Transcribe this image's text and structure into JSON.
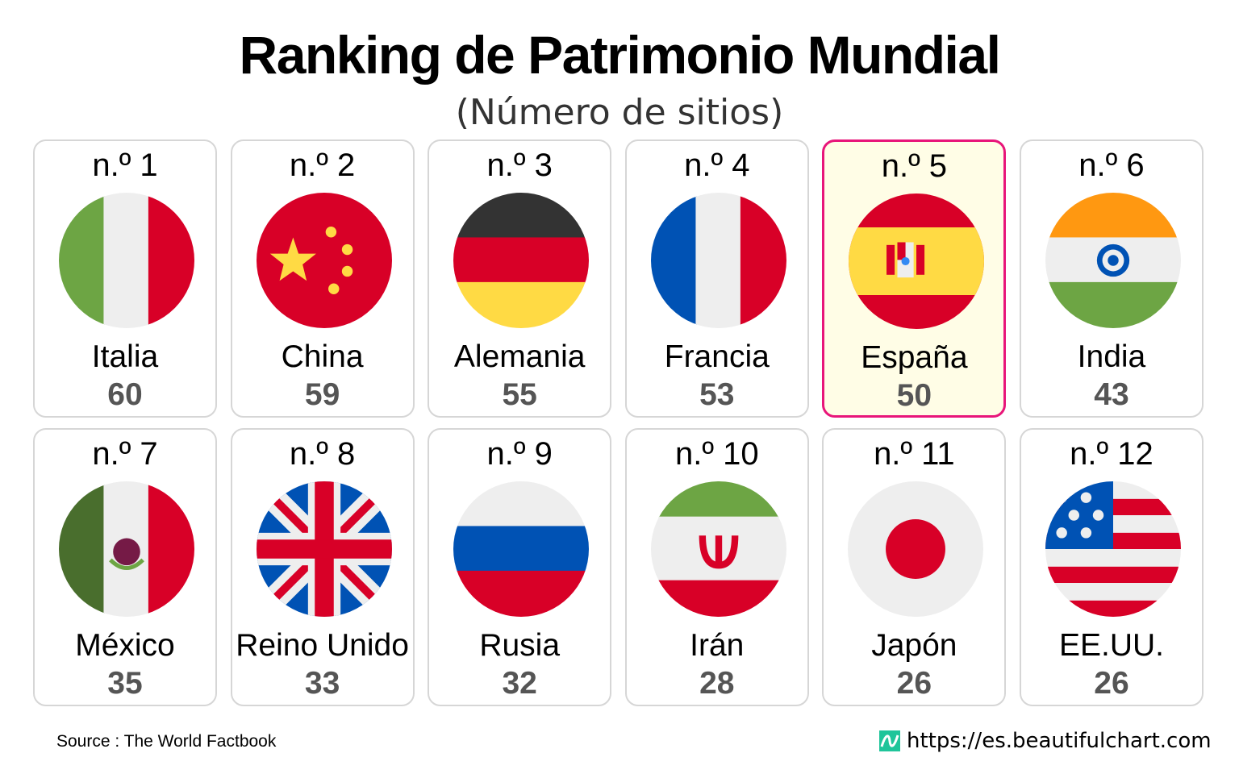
{
  "header": {
    "title": "Ranking de Patrimonio Mundial",
    "subtitle": "(Número de sitios)"
  },
  "chart_data": {
    "type": "table",
    "title": "Ranking de Patrimonio Mundial",
    "subtitle": "(Número de sitios)",
    "highlight_color": "#e8157a",
    "items": [
      {
        "rank": "n.º 1",
        "country": "Italia",
        "value": 60,
        "flag": "italy",
        "highlight": false
      },
      {
        "rank": "n.º 2",
        "country": "China",
        "value": 59,
        "flag": "china",
        "highlight": false
      },
      {
        "rank": "n.º 3",
        "country": "Alemania",
        "value": 55,
        "flag": "germany",
        "highlight": false
      },
      {
        "rank": "n.º 4",
        "country": "Francia",
        "value": 53,
        "flag": "france",
        "highlight": false
      },
      {
        "rank": "n.º 5",
        "country": "España",
        "value": 50,
        "flag": "spain",
        "highlight": true
      },
      {
        "rank": "n.º 6",
        "country": "India",
        "value": 43,
        "flag": "india",
        "highlight": false
      },
      {
        "rank": "n.º 7",
        "country": "México",
        "value": 35,
        "flag": "mexico",
        "highlight": false
      },
      {
        "rank": "n.º 8",
        "country": "Reino Unido",
        "value": 33,
        "flag": "uk",
        "highlight": false
      },
      {
        "rank": "n.º 9",
        "country": "Rusia",
        "value": 32,
        "flag": "russia",
        "highlight": false
      },
      {
        "rank": "n.º 10",
        "country": "Irán",
        "value": 28,
        "flag": "iran",
        "highlight": false
      },
      {
        "rank": "n.º 11",
        "country": "Japón",
        "value": 26,
        "flag": "japan",
        "highlight": false
      },
      {
        "rank": "n.º 12",
        "country": "EE.UU.",
        "value": 26,
        "flag": "usa",
        "highlight": false
      }
    ]
  },
  "footer": {
    "source": "Source : The World Factbook",
    "url": "https://es.beautifulchart.com",
    "logo_icon": "beautifulchart-logo-icon"
  }
}
